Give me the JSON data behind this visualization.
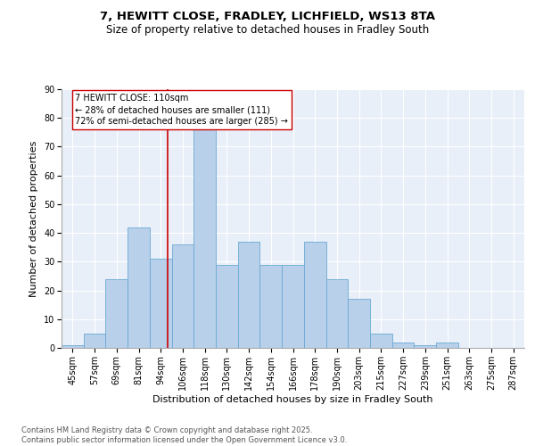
{
  "title1": "7, HEWITT CLOSE, FRADLEY, LICHFIELD, WS13 8TA",
  "title2": "Size of property relative to detached houses in Fradley South",
  "xlabel": "Distribution of detached houses by size in Fradley South",
  "ylabel": "Number of detached properties",
  "bins": [
    "45sqm",
    "57sqm",
    "69sqm",
    "81sqm",
    "94sqm",
    "106sqm",
    "118sqm",
    "130sqm",
    "142sqm",
    "154sqm",
    "166sqm",
    "178sqm",
    "190sqm",
    "203sqm",
    "215sqm",
    "227sqm",
    "239sqm",
    "251sqm",
    "263sqm",
    "275sqm",
    "287sqm"
  ],
  "values": [
    1,
    5,
    24,
    42,
    31,
    36,
    76,
    29,
    37,
    29,
    29,
    37,
    24,
    17,
    5,
    2,
    1,
    2,
    0,
    0,
    0
  ],
  "bar_color": "#b8d0ea",
  "bar_edge_color": "#6aaad4",
  "subject_line_color": "#cc0000",
  "annotation_text": "7 HEWITT CLOSE: 110sqm\n← 28% of detached houses are smaller (111)\n72% of semi-detached houses are larger (285) →",
  "annotation_box_color": "#cc0000",
  "ylim": [
    0,
    90
  ],
  "yticks": [
    0,
    10,
    20,
    30,
    40,
    50,
    60,
    70,
    80,
    90
  ],
  "background_color": "#e8eff8",
  "footer": "Contains HM Land Registry data © Crown copyright and database right 2025.\nContains public sector information licensed under the Open Government Licence v3.0.",
  "title_fontsize": 9.5,
  "subtitle_fontsize": 8.5,
  "axis_label_fontsize": 8,
  "tick_fontsize": 7,
  "annotation_fontsize": 7,
  "footer_fontsize": 6
}
